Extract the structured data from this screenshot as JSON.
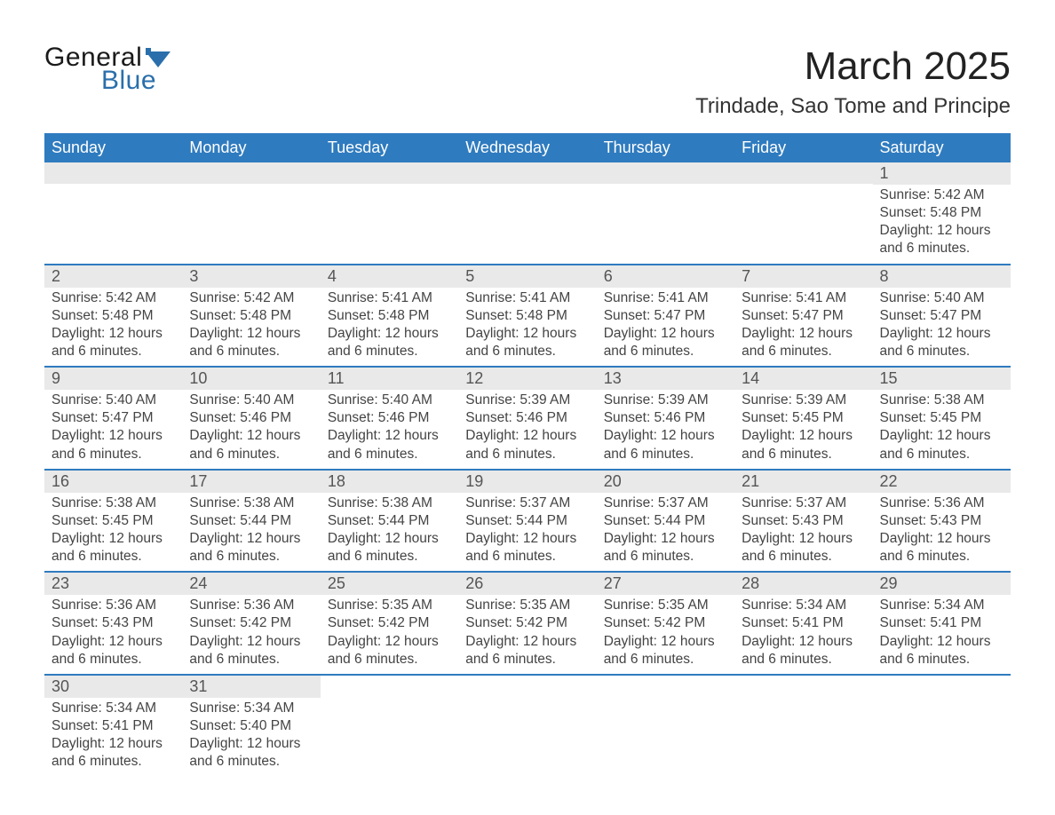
{
  "colors": {
    "header_blue": "#2f7bbf",
    "row_separator": "#2f7bbf",
    "daynum_bg": "#e9e9e9",
    "text": "#333333",
    "logo_dark": "#1a1a1a",
    "logo_blue": "#2a6fab",
    "background": "#ffffff",
    "header_text": "#ffffff"
  },
  "typography": {
    "title_fontsize_pt": 33,
    "subtitle_fontsize_pt": 18,
    "header_cell_fontsize_pt": 14,
    "daynum_fontsize_pt": 14,
    "body_fontsize_pt": 12,
    "font_family": "Arial"
  },
  "logo": {
    "line1": "General",
    "line2": "Blue",
    "mark_color": "#2a6fab"
  },
  "title": {
    "month_year": "March 2025",
    "location": "Trindade, Sao Tome and Principe"
  },
  "weekdays": [
    "Sunday",
    "Monday",
    "Tuesday",
    "Wednesday",
    "Thursday",
    "Friday",
    "Saturday"
  ],
  "labels": {
    "sunrise": "Sunrise:",
    "sunset": "Sunset:",
    "daylight": "Daylight:"
  },
  "calendar": {
    "type": "month-grid",
    "columns": 7,
    "rows": 6,
    "first_weekday_index": 6,
    "days_in_month": 31,
    "days": [
      {
        "n": 1,
        "sunrise": "5:42 AM",
        "sunset": "5:48 PM",
        "daylight": "12 hours and 6 minutes."
      },
      {
        "n": 2,
        "sunrise": "5:42 AM",
        "sunset": "5:48 PM",
        "daylight": "12 hours and 6 minutes."
      },
      {
        "n": 3,
        "sunrise": "5:42 AM",
        "sunset": "5:48 PM",
        "daylight": "12 hours and 6 minutes."
      },
      {
        "n": 4,
        "sunrise": "5:41 AM",
        "sunset": "5:48 PM",
        "daylight": "12 hours and 6 minutes."
      },
      {
        "n": 5,
        "sunrise": "5:41 AM",
        "sunset": "5:48 PM",
        "daylight": "12 hours and 6 minutes."
      },
      {
        "n": 6,
        "sunrise": "5:41 AM",
        "sunset": "5:47 PM",
        "daylight": "12 hours and 6 minutes."
      },
      {
        "n": 7,
        "sunrise": "5:41 AM",
        "sunset": "5:47 PM",
        "daylight": "12 hours and 6 minutes."
      },
      {
        "n": 8,
        "sunrise": "5:40 AM",
        "sunset": "5:47 PM",
        "daylight": "12 hours and 6 minutes."
      },
      {
        "n": 9,
        "sunrise": "5:40 AM",
        "sunset": "5:47 PM",
        "daylight": "12 hours and 6 minutes."
      },
      {
        "n": 10,
        "sunrise": "5:40 AM",
        "sunset": "5:46 PM",
        "daylight": "12 hours and 6 minutes."
      },
      {
        "n": 11,
        "sunrise": "5:40 AM",
        "sunset": "5:46 PM",
        "daylight": "12 hours and 6 minutes."
      },
      {
        "n": 12,
        "sunrise": "5:39 AM",
        "sunset": "5:46 PM",
        "daylight": "12 hours and 6 minutes."
      },
      {
        "n": 13,
        "sunrise": "5:39 AM",
        "sunset": "5:46 PM",
        "daylight": "12 hours and 6 minutes."
      },
      {
        "n": 14,
        "sunrise": "5:39 AM",
        "sunset": "5:45 PM",
        "daylight": "12 hours and 6 minutes."
      },
      {
        "n": 15,
        "sunrise": "5:38 AM",
        "sunset": "5:45 PM",
        "daylight": "12 hours and 6 minutes."
      },
      {
        "n": 16,
        "sunrise": "5:38 AM",
        "sunset": "5:45 PM",
        "daylight": "12 hours and 6 minutes."
      },
      {
        "n": 17,
        "sunrise": "5:38 AM",
        "sunset": "5:44 PM",
        "daylight": "12 hours and 6 minutes."
      },
      {
        "n": 18,
        "sunrise": "5:38 AM",
        "sunset": "5:44 PM",
        "daylight": "12 hours and 6 minutes."
      },
      {
        "n": 19,
        "sunrise": "5:37 AM",
        "sunset": "5:44 PM",
        "daylight": "12 hours and 6 minutes."
      },
      {
        "n": 20,
        "sunrise": "5:37 AM",
        "sunset": "5:44 PM",
        "daylight": "12 hours and 6 minutes."
      },
      {
        "n": 21,
        "sunrise": "5:37 AM",
        "sunset": "5:43 PM",
        "daylight": "12 hours and 6 minutes."
      },
      {
        "n": 22,
        "sunrise": "5:36 AM",
        "sunset": "5:43 PM",
        "daylight": "12 hours and 6 minutes."
      },
      {
        "n": 23,
        "sunrise": "5:36 AM",
        "sunset": "5:43 PM",
        "daylight": "12 hours and 6 minutes."
      },
      {
        "n": 24,
        "sunrise": "5:36 AM",
        "sunset": "5:42 PM",
        "daylight": "12 hours and 6 minutes."
      },
      {
        "n": 25,
        "sunrise": "5:35 AM",
        "sunset": "5:42 PM",
        "daylight": "12 hours and 6 minutes."
      },
      {
        "n": 26,
        "sunrise": "5:35 AM",
        "sunset": "5:42 PM",
        "daylight": "12 hours and 6 minutes."
      },
      {
        "n": 27,
        "sunrise": "5:35 AM",
        "sunset": "5:42 PM",
        "daylight": "12 hours and 6 minutes."
      },
      {
        "n": 28,
        "sunrise": "5:34 AM",
        "sunset": "5:41 PM",
        "daylight": "12 hours and 6 minutes."
      },
      {
        "n": 29,
        "sunrise": "5:34 AM",
        "sunset": "5:41 PM",
        "daylight": "12 hours and 6 minutes."
      },
      {
        "n": 30,
        "sunrise": "5:34 AM",
        "sunset": "5:41 PM",
        "daylight": "12 hours and 6 minutes."
      },
      {
        "n": 31,
        "sunrise": "5:34 AM",
        "sunset": "5:40 PM",
        "daylight": "12 hours and 6 minutes."
      }
    ]
  }
}
